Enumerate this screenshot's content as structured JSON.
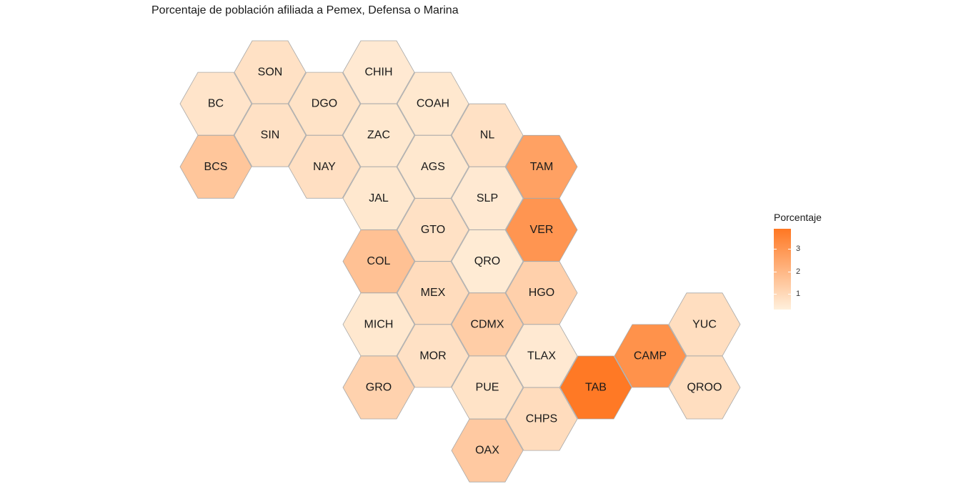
{
  "chart_data": {
    "type": "heatmap",
    "title": "Porcentaje de población afiliada a Pemex, Defensa o Marina",
    "legend": {
      "title": "Porcentaje",
      "placement": "right",
      "ticks": [
        1,
        2,
        3
      ],
      "range": [
        0.3,
        3.9
      ],
      "colors": {
        "low": "#fff0dc",
        "high": "#ff7722"
      }
    },
    "states": [
      {
        "name": "SON",
        "value": 0.75
      },
      {
        "name": "CHIH",
        "value": 0.5
      },
      {
        "name": "BC",
        "value": 0.65
      },
      {
        "name": "DGO",
        "value": 0.7
      },
      {
        "name": "COAH",
        "value": 0.55
      },
      {
        "name": "SIN",
        "value": 0.75
      },
      {
        "name": "ZAC",
        "value": 0.55
      },
      {
        "name": "NL",
        "value": 0.75
      },
      {
        "name": "BCS",
        "value": 1.55
      },
      {
        "name": "NAY",
        "value": 0.8
      },
      {
        "name": "AGS",
        "value": 0.55
      },
      {
        "name": "TAM",
        "value": 2.65
      },
      {
        "name": "JAL",
        "value": 0.55
      },
      {
        "name": "SLP",
        "value": 0.5
      },
      {
        "name": "GTO",
        "value": 0.75
      },
      {
        "name": "VER",
        "value": 3.0
      },
      {
        "name": "COL",
        "value": 1.7
      },
      {
        "name": "QRO",
        "value": 0.45
      },
      {
        "name": "MEX",
        "value": 0.9
      },
      {
        "name": "HGO",
        "value": 1.25
      },
      {
        "name": "MICH",
        "value": 0.55
      },
      {
        "name": "CDMX",
        "value": 1.35
      },
      {
        "name": "YUC",
        "value": 0.85
      },
      {
        "name": "MOR",
        "value": 0.75
      },
      {
        "name": "TLAX",
        "value": 0.5
      },
      {
        "name": "CAMP",
        "value": 3.1
      },
      {
        "name": "GRO",
        "value": 1.2
      },
      {
        "name": "PUE",
        "value": 0.7
      },
      {
        "name": "TAB",
        "value": 3.85
      },
      {
        "name": "QROO",
        "value": 0.85
      },
      {
        "name": "CHPS",
        "value": 0.9
      },
      {
        "name": "OAX",
        "value": 1.45
      }
    ]
  }
}
